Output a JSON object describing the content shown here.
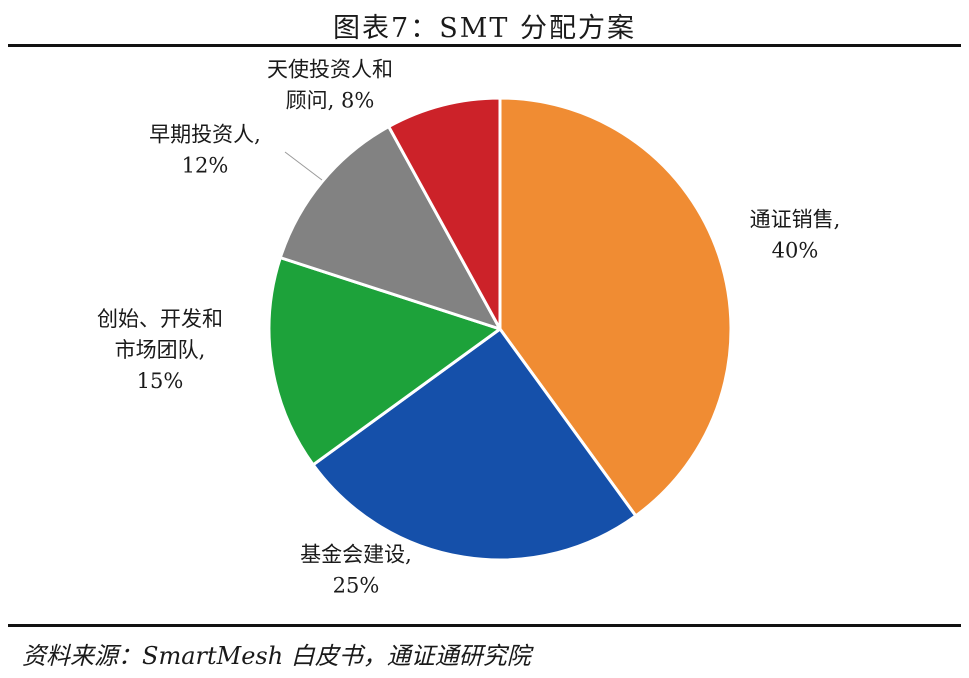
{
  "figure": {
    "title": "图表7：SMT 分配方案",
    "source": "资料来源：SmartMesh 白皮书，通证通研究院"
  },
  "chart_data": {
    "type": "pie",
    "title": "图表7：SMT 分配方案",
    "start_angle_deg": 0,
    "direction": "clockwise",
    "slices": [
      {
        "label_lines": [
          "通证销售,",
          "40%"
        ],
        "value": 40,
        "color": "#F08C33"
      },
      {
        "label_lines": [
          "基金会建设,",
          "25%"
        ],
        "value": 25,
        "color": "#1550AA"
      },
      {
        "label_lines": [
          "创始、开发和",
          "市场团队,",
          "15%"
        ],
        "value": 15,
        "color": "#1DA23A"
      },
      {
        "label_lines": [
          "早期投资人,",
          "12%"
        ],
        "value": 12,
        "color": "#828282"
      },
      {
        "label_lines": [
          "天使投资人和",
          "顾问, 8%"
        ],
        "value": 8,
        "color": "#CC2229"
      }
    ]
  }
}
